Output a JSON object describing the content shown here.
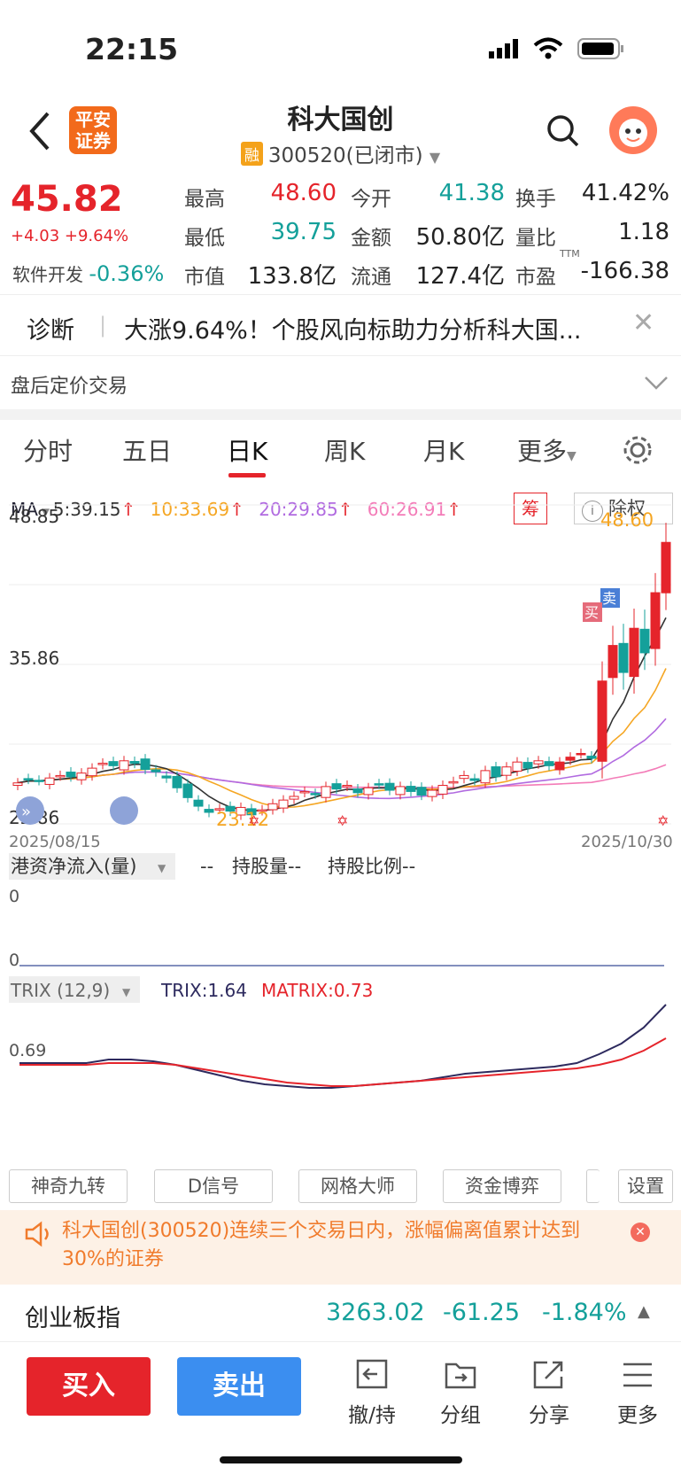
{
  "status": {
    "time": "22:15"
  },
  "header": {
    "logo_line1": "平安",
    "logo_line2": "证券",
    "title": "科大国创",
    "badge": "融",
    "subtitle": "300520(已闭市)"
  },
  "quote": {
    "price": "45.82",
    "change": "+4.03 +9.64%",
    "sector_name": "软件开发",
    "sector_change": "-0.36%",
    "rows": [
      [
        {
          "label": "最高",
          "value": "48.60"
        },
        {
          "label": "今开",
          "value": "41.38"
        },
        {
          "label": "换手",
          "value": "41.42%"
        }
      ],
      [
        {
          "label": "最低",
          "value": "39.75"
        },
        {
          "label": "金额",
          "value": "50.80亿"
        },
        {
          "label": "量比",
          "value": "1.18"
        }
      ],
      [
        {
          "label": "市值",
          "value": "133.8亿"
        },
        {
          "label": "流通",
          "value": "127.4亿"
        },
        {
          "label": "市盈",
          "value": "-166.38",
          "sup": "TTM"
        }
      ]
    ]
  },
  "diag": {
    "label": "诊断",
    "text": "大涨9.64%！个股风向标助力分析科大国..."
  },
  "post_trade": {
    "label": "盘后定价交易"
  },
  "tabs": [
    "分时",
    "五日",
    "日K",
    "周K",
    "月K",
    "更多"
  ],
  "ma": {
    "label": "MA",
    "ma5": "5:39.15",
    "ma10": "10:33.69",
    "ma20": "20:29.85",
    "ma60": "60:26.91",
    "chou": "筹",
    "chuquan": "除权"
  },
  "chart": {
    "y_high": "48.85",
    "y_mid": "35.86",
    "y_low": "22.86",
    "high_label": "48.60",
    "low_label": "23.12",
    "date_start": "2025/08/15",
    "date_end": "2025/10/30",
    "buy_tag": "买",
    "sell_tag": "卖",
    "colors": {
      "up": "#e5242b",
      "down": "#14a09a",
      "ma5": "#333333",
      "ma10": "#f5a623",
      "ma20": "#b16be0",
      "ma60": "#f37cb8"
    }
  },
  "hk": {
    "label": "港资净流入(量)",
    "dash": "--",
    "hold": "持股量--",
    "ratio": "持股比例--",
    "top": "0",
    "zero": "0"
  },
  "trix": {
    "label": "TRIX (12,9)",
    "trix": "TRIX:1.64",
    "matrix": "MATRIX:0.73",
    "level": "0.69"
  },
  "chips": [
    "神奇九转",
    "D信号",
    "网格大师",
    "资金博弈",
    "设置"
  ],
  "alert": {
    "text": "科大国创(300520)连续三个交易日内，涨幅偏离值累计达到30%的证券"
  },
  "index": {
    "name": "创业板指",
    "value": "3263.02",
    "change": "-61.25",
    "pct": "-1.84%"
  },
  "toolbar": {
    "buy": "买入",
    "sell": "卖出",
    "items": [
      "撤/持",
      "分组",
      "分享",
      "更多"
    ]
  }
}
